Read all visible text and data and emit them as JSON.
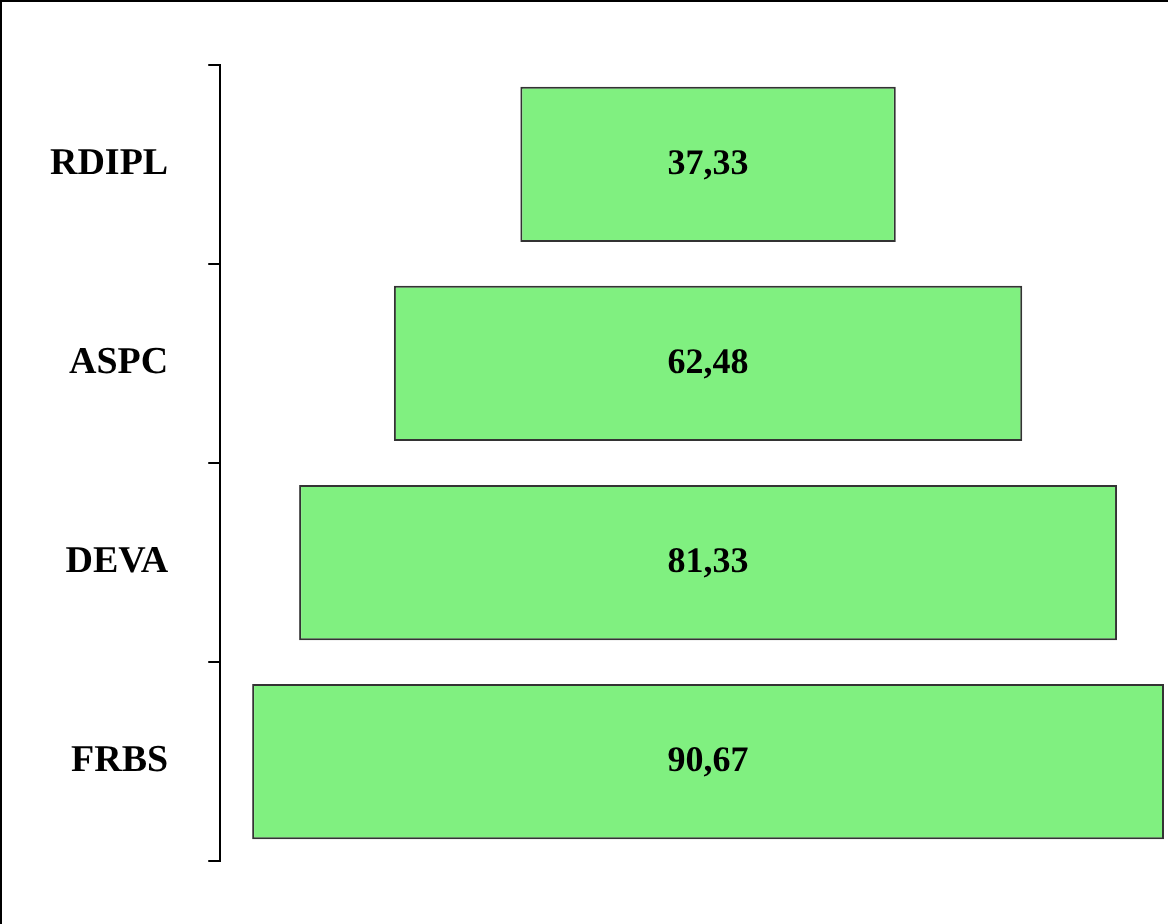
{
  "chart_data": {
    "type": "other",
    "categories": [
      "RDIPL",
      "ASPC",
      "DEVA",
      "FRBS"
    ],
    "values": [
      37.33,
      62.48,
      81.33,
      90.67
    ],
    "value_labels": [
      "37,33",
      "62,48",
      "81,33",
      "90,67"
    ],
    "color": "#80f080"
  }
}
